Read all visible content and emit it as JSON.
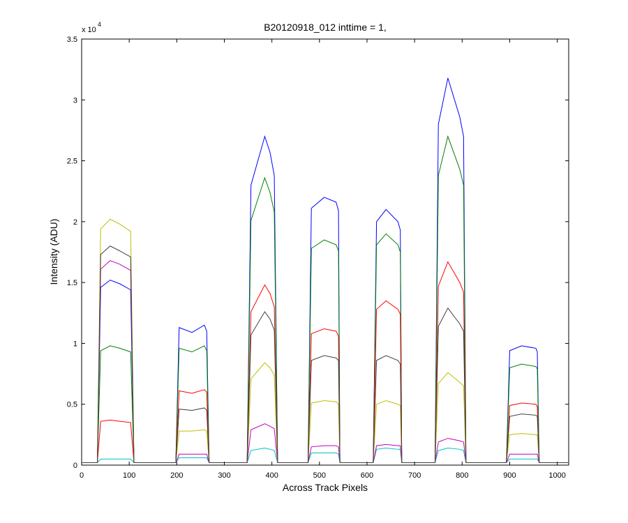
{
  "chart_data": {
    "type": "line",
    "title": "B20120918_012 inttime = 1,",
    "x_label": "Across Track Pixels",
    "y_label": "Intensity (ADU)",
    "y_scale_base": "x 10",
    "y_scale_exponent": "4",
    "xlim": [
      0,
      1024
    ],
    "ylim": [
      0,
      3.5
    ],
    "xticks": [
      0,
      100,
      200,
      300,
      400,
      500,
      600,
      700,
      800,
      900,
      1000
    ],
    "yticks": [
      0,
      0.5,
      1,
      1.5,
      2,
      2.5,
      3,
      3.5
    ],
    "grid": false,
    "x": [
      0,
      33,
      40,
      60,
      80,
      103,
      110,
      198,
      205,
      232,
      258,
      263,
      268,
      348,
      356,
      385,
      396,
      405,
      412,
      476,
      483,
      510,
      535,
      540,
      543,
      613,
      620,
      640,
      665,
      670,
      673,
      743,
      750,
      770,
      795,
      803,
      808,
      893,
      900,
      925,
      955,
      958,
      962,
      1024
    ],
    "series": [
      {
        "color": "#0000ff",
        "values": [
          0.02,
          0.02,
          1.46,
          1.52,
          1.49,
          1.44,
          0.02,
          0.02,
          1.13,
          1.09,
          1.15,
          1.1,
          0.02,
          0.02,
          2.3,
          2.7,
          2.57,
          2.38,
          0.02,
          0.02,
          2.11,
          2.2,
          2.16,
          2.09,
          0.02,
          0.02,
          2.0,
          2.1,
          2.0,
          1.93,
          0.02,
          0.02,
          2.8,
          3.18,
          2.86,
          2.7,
          0.02,
          0.02,
          0.94,
          0.98,
          0.96,
          0.93,
          0.02,
          0.02
        ]
      },
      {
        "color": "#008000",
        "values": [
          0.02,
          0.02,
          0.94,
          0.98,
          0.96,
          0.93,
          0.02,
          0.02,
          0.96,
          0.93,
          0.98,
          0.94,
          0.02,
          0.02,
          2.01,
          2.36,
          2.24,
          2.08,
          0.02,
          0.02,
          1.78,
          1.85,
          1.81,
          1.76,
          0.02,
          0.02,
          1.81,
          1.9,
          1.81,
          1.75,
          0.02,
          0.02,
          2.38,
          2.7,
          2.43,
          2.3,
          0.02,
          0.02,
          0.8,
          0.83,
          0.81,
          0.79,
          0.02,
          0.02
        ]
      },
      {
        "color": "#ff0000",
        "values": [
          0.02,
          0.02,
          0.36,
          0.37,
          0.36,
          0.35,
          0.02,
          0.02,
          0.61,
          0.59,
          0.62,
          0.6,
          0.02,
          0.02,
          1.26,
          1.48,
          1.41,
          1.3,
          0.02,
          0.02,
          1.08,
          1.12,
          1.1,
          1.06,
          0.02,
          0.02,
          1.28,
          1.35,
          1.28,
          1.24,
          0.02,
          0.02,
          1.47,
          1.67,
          1.5,
          1.42,
          0.02,
          0.02,
          0.49,
          0.51,
          0.5,
          0.48,
          0.02,
          0.02
        ]
      },
      {
        "color": "#00bfbf",
        "values": [
          0.02,
          0.02,
          0.05,
          0.05,
          0.05,
          0.05,
          0.02,
          0.02,
          0.06,
          0.06,
          0.06,
          0.06,
          0.02,
          0.02,
          0.12,
          0.14,
          0.13,
          0.12,
          0.02,
          0.02,
          0.1,
          0.1,
          0.1,
          0.09,
          0.02,
          0.02,
          0.13,
          0.14,
          0.13,
          0.13,
          0.02,
          0.02,
          0.12,
          0.14,
          0.13,
          0.12,
          0.02,
          0.02,
          0.05,
          0.05,
          0.05,
          0.05,
          0.02,
          0.02
        ]
      },
      {
        "color": "#bf00bf",
        "values": [
          0.02,
          0.02,
          1.61,
          1.68,
          1.65,
          1.6,
          0.02,
          0.02,
          0.09,
          0.09,
          0.09,
          0.09,
          0.02,
          0.02,
          0.29,
          0.34,
          0.32,
          0.3,
          0.02,
          0.02,
          0.15,
          0.16,
          0.16,
          0.15,
          0.02,
          0.02,
          0.16,
          0.17,
          0.16,
          0.16,
          0.02,
          0.02,
          0.19,
          0.22,
          0.2,
          0.19,
          0.02,
          0.02,
          0.09,
          0.09,
          0.09,
          0.09,
          0.02,
          0.02
        ]
      },
      {
        "color": "#bfbf00",
        "values": [
          0.02,
          0.02,
          1.94,
          2.02,
          1.98,
          1.92,
          0.02,
          0.02,
          0.28,
          0.28,
          0.29,
          0.28,
          0.02,
          0.02,
          0.71,
          0.84,
          0.8,
          0.74,
          0.02,
          0.02,
          0.51,
          0.53,
          0.52,
          0.5,
          0.02,
          0.02,
          0.5,
          0.53,
          0.5,
          0.49,
          0.02,
          0.02,
          0.67,
          0.76,
          0.68,
          0.65,
          0.02,
          0.02,
          0.25,
          0.26,
          0.25,
          0.25,
          0.02,
          0.02
        ]
      },
      {
        "color": "#404040",
        "values": [
          0.02,
          0.02,
          1.73,
          1.8,
          1.76,
          1.71,
          0.02,
          0.02,
          0.46,
          0.45,
          0.47,
          0.45,
          0.02,
          0.02,
          1.07,
          1.26,
          1.2,
          1.11,
          0.02,
          0.02,
          0.86,
          0.9,
          0.88,
          0.86,
          0.02,
          0.02,
          0.86,
          0.9,
          0.86,
          0.83,
          0.02,
          0.02,
          1.14,
          1.29,
          1.16,
          1.1,
          0.02,
          0.02,
          0.4,
          0.42,
          0.41,
          0.4,
          0.02,
          0.02
        ]
      }
    ]
  }
}
